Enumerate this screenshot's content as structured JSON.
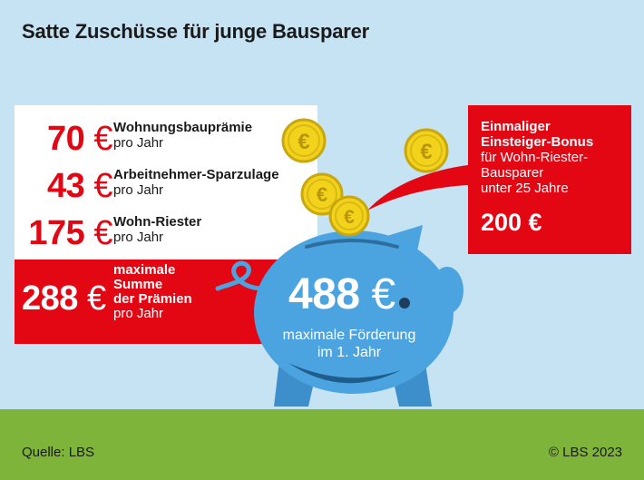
{
  "title": "Satte Zuschüsse für junge Bausparer",
  "rows": [
    {
      "amount": "70",
      "currency": "€",
      "label": "Wohnungsbauprämie",
      "period": "pro Jahr"
    },
    {
      "amount": "43",
      "currency": "€",
      "label": "Arbeitnehmer-Sparzulage",
      "period": "pro Jahr"
    },
    {
      "amount": "175",
      "currency": "€",
      "label": "Wohn-Riester",
      "period": "pro Jahr"
    }
  ],
  "sum": {
    "amount": "288",
    "currency": "€",
    "line1": "maximale",
    "line2": "Summe",
    "line3": "der Prämien",
    "line4": "pro Jahr"
  },
  "bonus": {
    "line1": "Einmaliger",
    "line2": "Einsteiger-Bonus",
    "line3": "für Wohn-Riester-",
    "line4": "Bausparer",
    "line5": "unter 25 Jahre",
    "amount": "200 €"
  },
  "pig": {
    "amount": "488",
    "currency": "€",
    "caption1": "maximale Förderung",
    "caption2": "im 1. Jahr"
  },
  "coin_symbol": "€",
  "footer": {
    "source": "Quelle: LBS",
    "copyright": "© LBS 2023"
  },
  "colors": {
    "sky": "#c6e3f4",
    "grass": "#7fb43a",
    "red": "#e30613",
    "pig": "#4ba3df",
    "coin": "#f3d21c"
  }
}
